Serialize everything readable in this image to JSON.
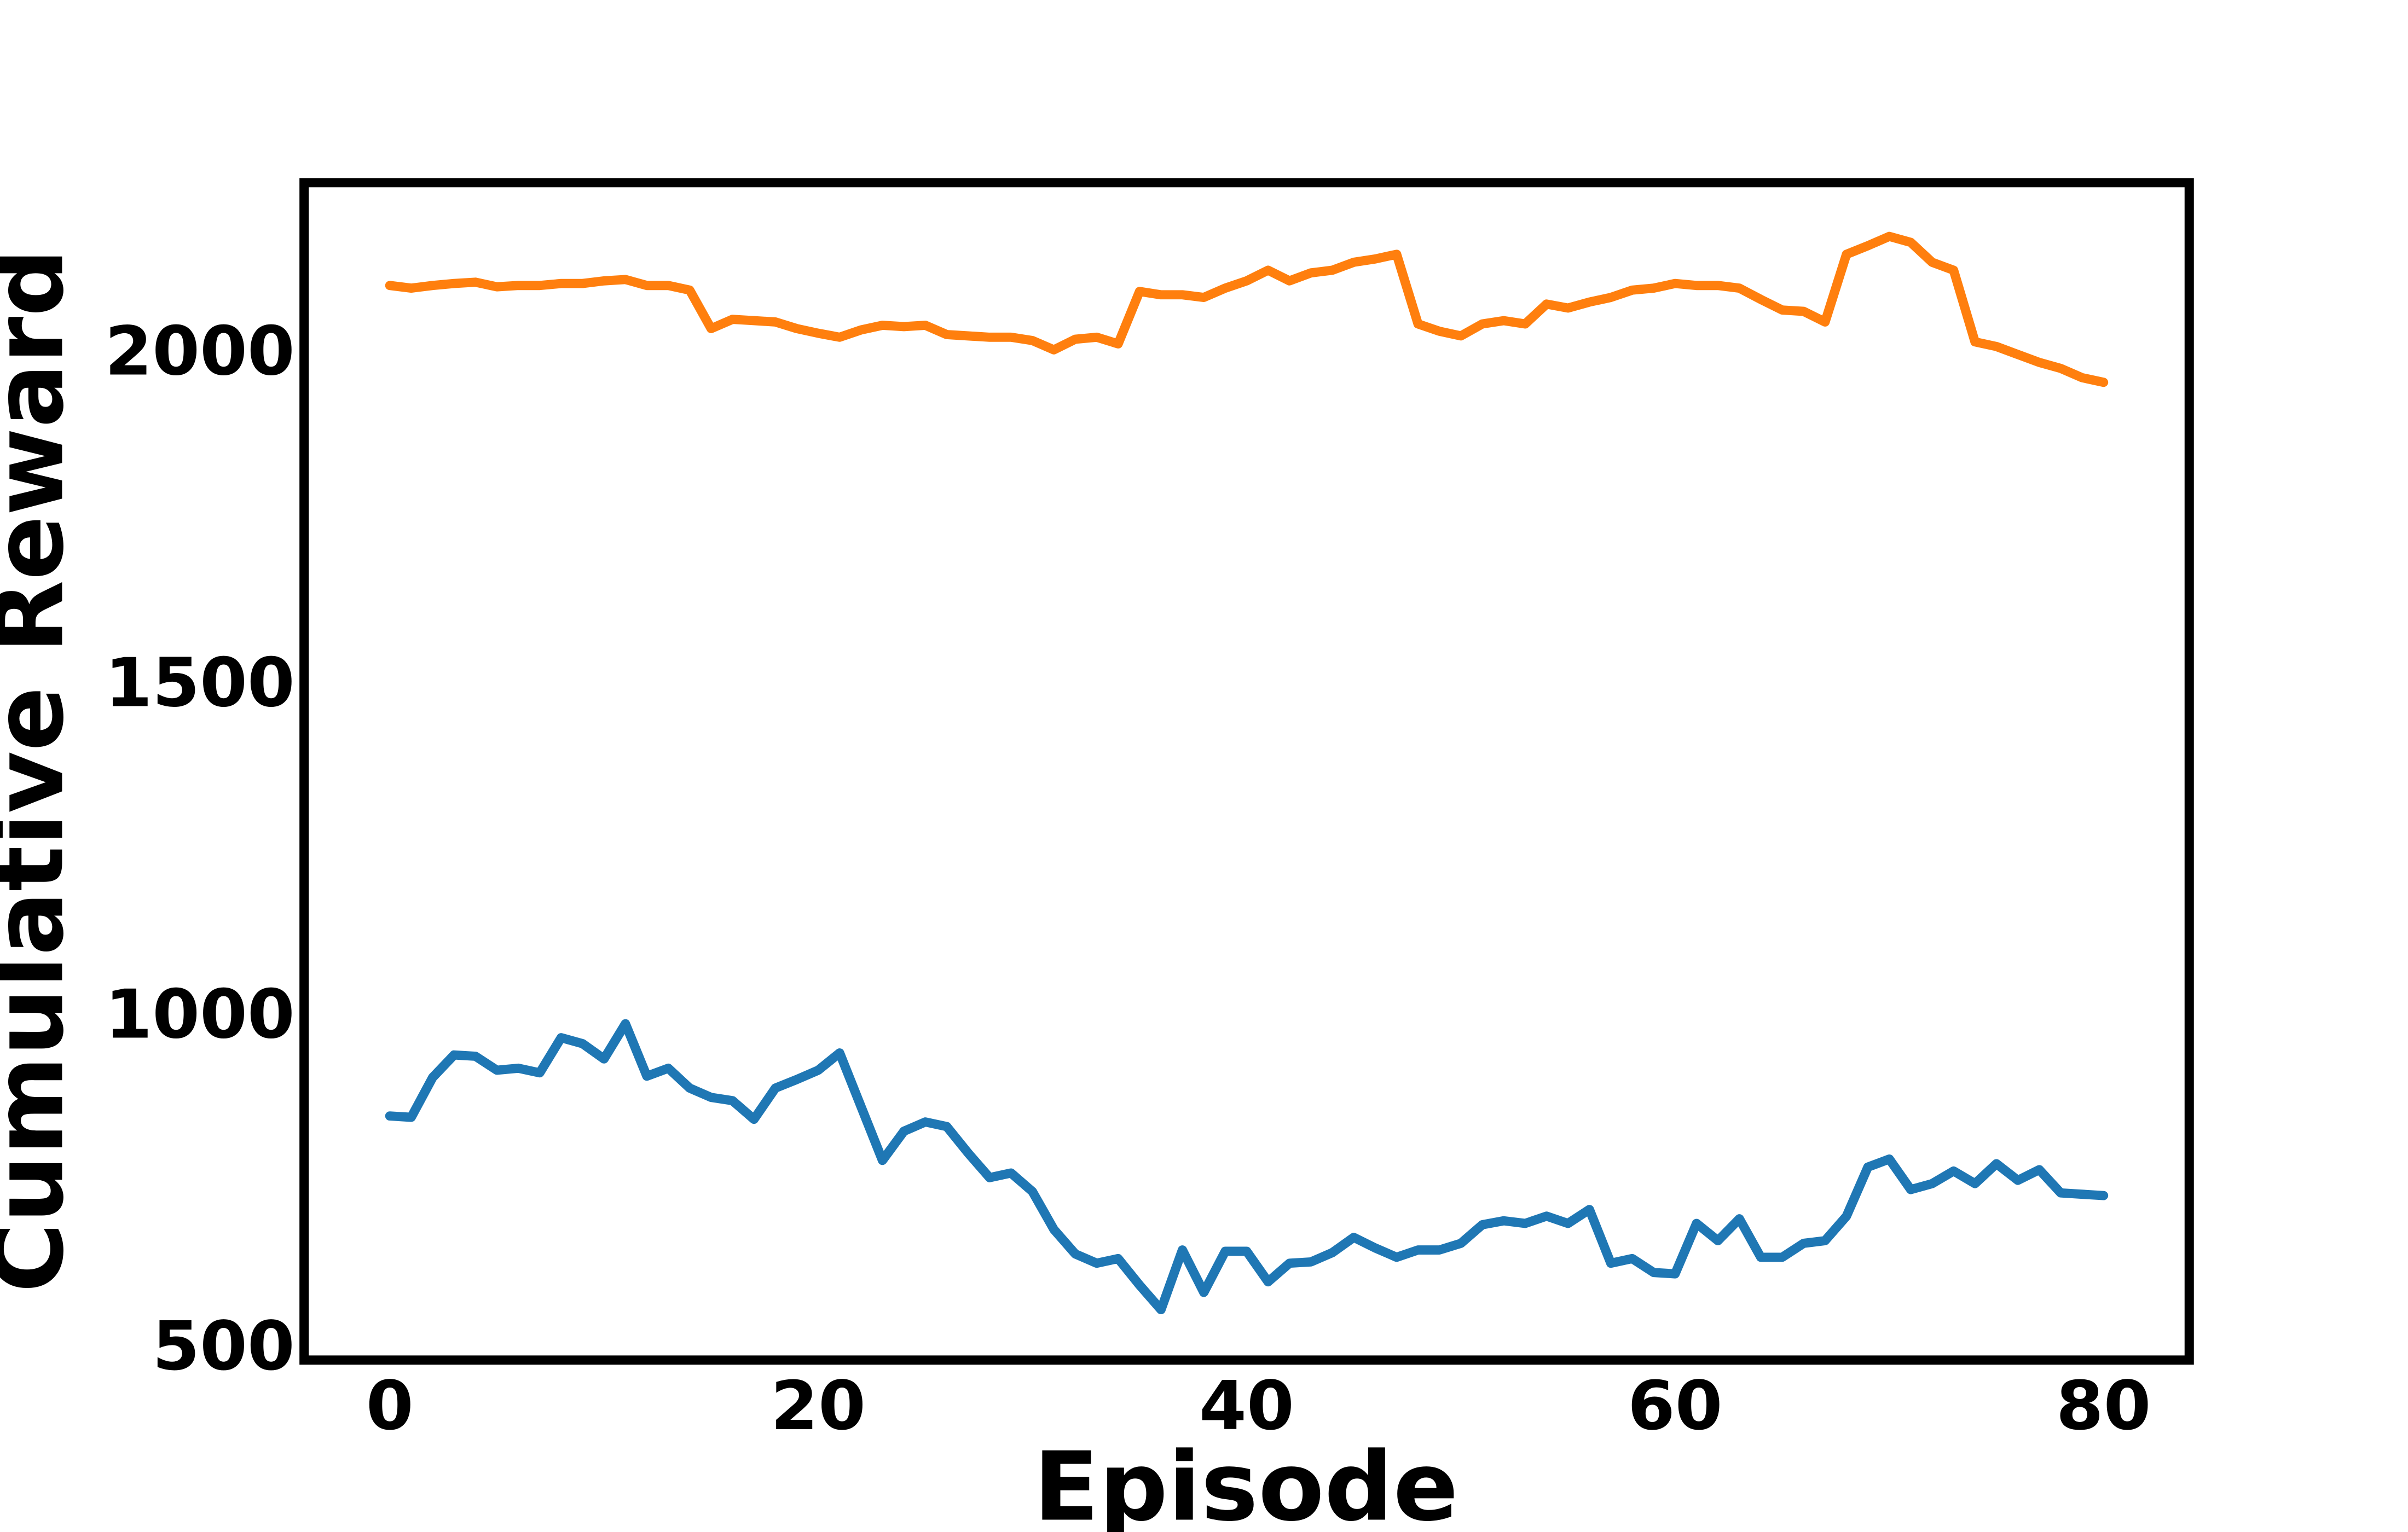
{
  "chart_data": {
    "type": "line",
    "x_label": "Episode",
    "y_label": "Cumulative Reward",
    "x": [
      0,
      1,
      2,
      3,
      4,
      5,
      6,
      7,
      8,
      9,
      10,
      11,
      12,
      13,
      14,
      15,
      16,
      17,
      18,
      19,
      20,
      21,
      22,
      23,
      24,
      25,
      26,
      27,
      28,
      29,
      30,
      31,
      32,
      33,
      34,
      35,
      36,
      37,
      38,
      39,
      40,
      41,
      42,
      43,
      44,
      45,
      46,
      47,
      48,
      49,
      50,
      51,
      52,
      53,
      54,
      55,
      56,
      57,
      58,
      59,
      60,
      61,
      62,
      63,
      64,
      65,
      66,
      67,
      68,
      69,
      70,
      71,
      72,
      73,
      74,
      75,
      76,
      77,
      78,
      79,
      80
    ],
    "series": [
      {
        "color": "#1f77b4",
        "values": [
          845,
          843,
          903,
          937,
          935,
          914,
          917,
          910,
          963,
          954,
          931,
          984,
          905,
          917,
          887,
          873,
          868,
          840,
          887,
          900,
          914,
          940,
          859,
          778,
          822,
          836,
          829,
          789,
          752,
          759,
          731,
          674,
          637,
          623,
          630,
          590,
          553,
          643,
          579,
          641,
          641,
          595,
          623,
          625,
          639,
          662,
          646,
          632,
          643,
          643,
          653,
          681,
          687,
          683,
          694,
          683,
          704,
          623,
          630,
          609,
          607,
          683,
          657,
          690,
          632,
          632,
          653,
          657,
          694,
          768,
          780,
          734,
          743,
          762,
          743,
          773,
          748,
          764,
          729,
          727,
          725
        ]
      },
      {
        "color": "#ff7f0e",
        "values": [
          2097,
          2093,
          2097,
          2100,
          2102,
          2095,
          2097,
          2097,
          2100,
          2100,
          2104,
          2106,
          2097,
          2097,
          2090,
          2032,
          2046,
          2044,
          2042,
          2032,
          2025,
          2019,
          2030,
          2037,
          2035,
          2037,
          2023,
          2021,
          2019,
          2019,
          2014,
          2000,
          2016,
          2019,
          2009,
          2088,
          2083,
          2083,
          2079,
          2093,
          2104,
          2120,
          2104,
          2116,
          2120,
          2132,
          2137,
          2144,
          2039,
          2028,
          2021,
          2039,
          2044,
          2039,
          2069,
          2063,
          2072,
          2079,
          2090,
          2093,
          2100,
          2097,
          2097,
          2093,
          2076,
          2060,
          2058,
          2042,
          2144,
          2157,
          2171,
          2162,
          2132,
          2120,
          2012,
          2005,
          1993,
          1981,
          1972,
          1958,
          1951
        ]
      }
    ],
    "xlim": [
      -4,
      84
    ],
    "ylim": [
      477,
      2252
    ],
    "xticks": [
      0,
      20,
      40,
      60,
      80
    ],
    "yticks": [
      500,
      1000,
      1500,
      2000
    ],
    "grid": false
  }
}
